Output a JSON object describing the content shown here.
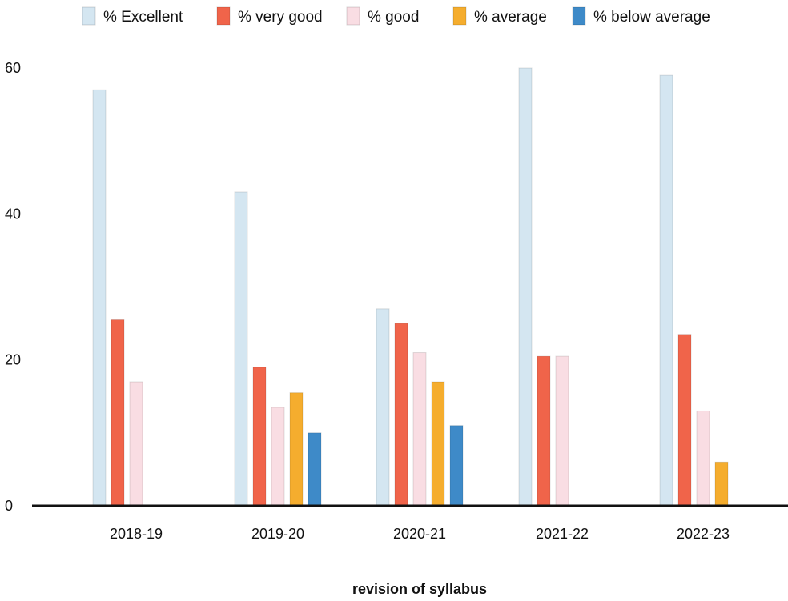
{
  "chart_data": {
    "type": "bar",
    "title": "",
    "xlabel": "revision of syllabus",
    "ylabel": "",
    "ylim": [
      0,
      60
    ],
    "yticks": [
      "0",
      "20",
      "40",
      "60"
    ],
    "grid": false,
    "legend_position": "top",
    "categories": [
      "2018-19",
      "2019-20",
      "2020-21",
      "2021-22",
      "2022-23"
    ],
    "series": [
      {
        "name": "% Excellent",
        "color": "#d4e6f1",
        "values": [
          57,
          43,
          27,
          60,
          59
        ]
      },
      {
        "name": "% very good",
        "color": "#f0644a",
        "values": [
          25.5,
          19,
          25,
          20.5,
          23.5
        ]
      },
      {
        "name": "% good",
        "color": "#f9dde3",
        "values": [
          17,
          13.5,
          21,
          20.5,
          13
        ]
      },
      {
        "name": "% average",
        "color": "#f5ad2e",
        "values": [
          0,
          15.5,
          17,
          0,
          6
        ]
      },
      {
        "name": "% below average",
        "color": "#3e8ac8",
        "values": [
          0,
          10,
          11,
          0,
          0
        ]
      }
    ]
  }
}
